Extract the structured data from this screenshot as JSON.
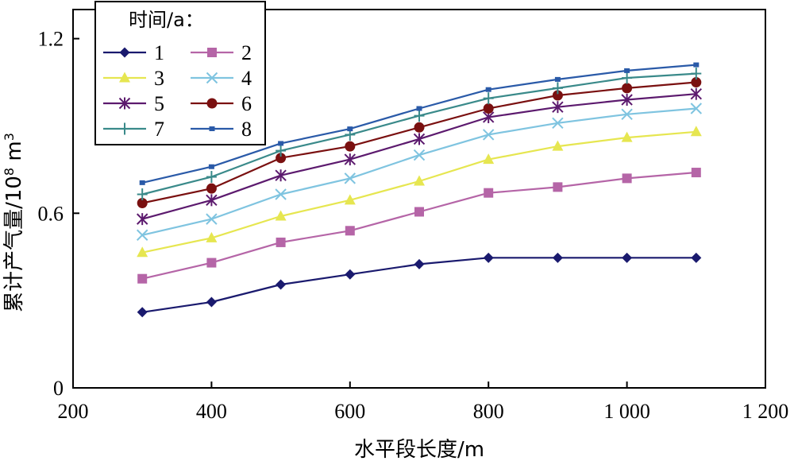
{
  "chart_data": {
    "type": "line",
    "title": "",
    "xlabel": "水平段长度/m",
    "ylabel_main": "累计产气量/10",
    "ylabel_sup": "8",
    "ylabel_unit": " m",
    "ylabel_unit_sup": "3",
    "xlim": [
      200,
      1200
    ],
    "ylim": [
      0,
      1.2
    ],
    "xticks": [
      200,
      400,
      600,
      800,
      1000,
      1200
    ],
    "xtick_labels": [
      "200",
      "400",
      "600",
      "800",
      "1 000",
      "1 200"
    ],
    "yticks": [
      0,
      0.6,
      1.2
    ],
    "ytick_labels": [
      "0",
      "0.6",
      "1.2"
    ],
    "grid": false,
    "legend": {
      "title": "时间/a：",
      "position": "top-left",
      "columns": 2
    },
    "x": [
      300,
      400,
      500,
      600,
      700,
      800,
      900,
      1000,
      1100
    ],
    "series": [
      {
        "name": "1",
        "color": "#1a1a6e",
        "marker": "diamond",
        "values": [
          0.26,
          0.295,
          0.355,
          0.39,
          0.425,
          0.447,
          0.447,
          0.447,
          0.447
        ]
      },
      {
        "name": "2",
        "color": "#b565a7",
        "marker": "square",
        "values": [
          0.375,
          0.43,
          0.5,
          0.54,
          0.605,
          0.67,
          0.69,
          0.72,
          0.74
        ]
      },
      {
        "name": "3",
        "color": "#e6e650",
        "marker": "triangle",
        "values": [
          0.465,
          0.515,
          0.59,
          0.645,
          0.71,
          0.785,
          0.83,
          0.86,
          0.88
        ]
      },
      {
        "name": "4",
        "color": "#7fc4e0",
        "marker": "x",
        "values": [
          0.525,
          0.58,
          0.665,
          0.72,
          0.8,
          0.87,
          0.91,
          0.94,
          0.96
        ]
      },
      {
        "name": "5",
        "color": "#5c1a6e",
        "marker": "asterisk",
        "values": [
          0.58,
          0.645,
          0.73,
          0.785,
          0.855,
          0.93,
          0.965,
          0.99,
          1.01
        ]
      },
      {
        "name": "6",
        "color": "#7a1010",
        "marker": "circle",
        "values": [
          0.635,
          0.685,
          0.79,
          0.83,
          0.895,
          0.96,
          1.005,
          1.03,
          1.05
        ]
      },
      {
        "name": "7",
        "color": "#3a8a8a",
        "marker": "plus",
        "values": [
          0.665,
          0.725,
          0.815,
          0.87,
          0.935,
          0.995,
          1.03,
          1.065,
          1.08
        ]
      },
      {
        "name": "8",
        "color": "#2a5aa8",
        "marker": "dot",
        "values": [
          0.705,
          0.76,
          0.84,
          0.89,
          0.96,
          1.025,
          1.06,
          1.09,
          1.11
        ]
      }
    ]
  }
}
